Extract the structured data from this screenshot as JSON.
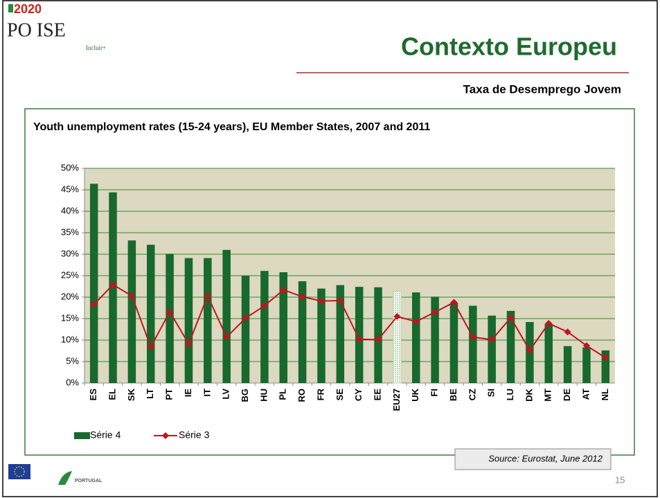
{
  "slide": {
    "logo_year": "2020",
    "logo_name": "PO ISE",
    "logo_tagline": "Incluir+",
    "title": "Contexto Europeu",
    "subtitle": "Taxa de Desemprego Jovem",
    "source": "Source: Eurostat, June 2012",
    "page": "15",
    "footer_logo": "PORTUGAL"
  },
  "chart_data": {
    "type": "bar_line",
    "title": "Youth unemployment rates (15-24 years), EU Member States, 2007 and 2011",
    "categories": [
      "ES",
      "EL",
      "SK",
      "LT",
      "PT",
      "IE",
      "IT",
      "LV",
      "BG",
      "HU",
      "PL",
      "RO",
      "FR",
      "SE",
      "CY",
      "EE",
      "EU27",
      "UK",
      "FI",
      "BE",
      "CZ",
      "SI",
      "LU",
      "DK",
      "MT",
      "DE",
      "AT",
      "NL"
    ],
    "series": [
      {
        "name": "Série 4",
        "type": "bar",
        "color": "#17692d",
        "highlight": {
          "category": "EU27",
          "color": "#b9d6b0"
        },
        "values": [
          46.4,
          44.4,
          33.2,
          32.2,
          30.1,
          29.1,
          29.1,
          31.0,
          25.0,
          26.1,
          25.8,
          23.7,
          22.0,
          22.8,
          22.4,
          22.3,
          21.3,
          21.1,
          20.1,
          18.7,
          18.0,
          15.7,
          16.8,
          14.2,
          13.8,
          8.6,
          8.3,
          7.6
        ]
      },
      {
        "name": "Série 3",
        "type": "line",
        "color": "#c0141e",
        "values": [
          18.3,
          22.9,
          20.3,
          8.4,
          16.6,
          9.1,
          20.3,
          10.7,
          15.1,
          18.0,
          21.7,
          20.1,
          19.1,
          19.2,
          10.2,
          10.1,
          15.5,
          14.3,
          16.5,
          18.8,
          10.7,
          10.1,
          15.2,
          7.6,
          13.9,
          11.9,
          8.7,
          5.9
        ]
      }
    ],
    "ylim": [
      0,
      50
    ],
    "yticks": [
      {
        "value": 0,
        "label": "0%"
      },
      {
        "value": 5,
        "label": "5%"
      },
      {
        "value": 10,
        "label": "10%"
      },
      {
        "value": 15,
        "label": "15%"
      },
      {
        "value": 20,
        "label": "20%"
      },
      {
        "value": 25,
        "label": "25%"
      },
      {
        "value": 30,
        "label": "30%"
      },
      {
        "value": 35,
        "label": "35%"
      },
      {
        "value": 40,
        "label": "40%"
      },
      {
        "value": 45,
        "label": "45%"
      },
      {
        "value": 50,
        "label": "50%"
      }
    ],
    "grid": true,
    "grid_color": "#2f8a3c",
    "plot_background": "#ddd8c0",
    "legend": "bottom-left"
  }
}
